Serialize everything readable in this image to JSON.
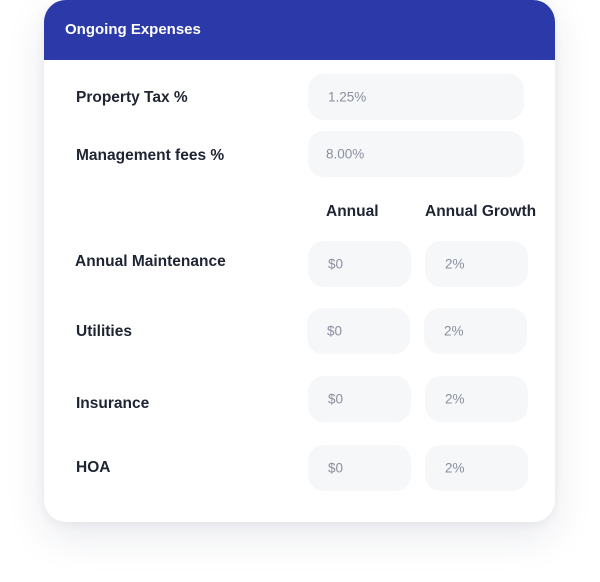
{
  "section": {
    "title": "Ongoing Expenses"
  },
  "property_tax": {
    "label": "Property Tax %",
    "value": "1.25%"
  },
  "management_fees": {
    "label": "Management fees %",
    "value": "8.00%"
  },
  "columns": {
    "annual": "Annual",
    "annual_growth": "Annual Growth"
  },
  "expenses": [
    {
      "label": "Annual Maintenance",
      "annual": "$0",
      "growth": "2%"
    },
    {
      "label": "Utilities",
      "annual": "$0",
      "growth": "2%"
    },
    {
      "label": "Insurance",
      "annual": "$0",
      "growth": "2%"
    },
    {
      "label": "HOA",
      "annual": "$0",
      "growth": "2%"
    }
  ],
  "colors": {
    "header_bg": "#2b3aa8",
    "field_bg": "#f6f7f9",
    "label_text": "#1f2433",
    "field_text": "#8a8fa0"
  }
}
